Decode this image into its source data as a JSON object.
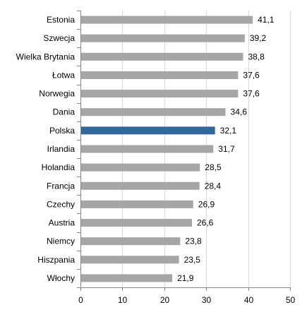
{
  "chart_data": {
    "type": "bar",
    "orientation": "horizontal",
    "title": "",
    "xlabel": "",
    "ylabel": "",
    "categories": [
      "Estonia",
      "Szwecja",
      "Wielka Brytania",
      "Łotwa",
      "Norwegia",
      "Dania",
      "Polska",
      "Irlandia",
      "Holandia",
      "Francja",
      "Czechy",
      "Austria",
      "Niemcy",
      "Hiszpania",
      "Włochy"
    ],
    "values": [
      41.1,
      39.2,
      38.8,
      37.6,
      37.6,
      34.6,
      32.1,
      31.7,
      28.5,
      28.4,
      26.9,
      26.6,
      23.8,
      23.5,
      21.9
    ],
    "value_labels": [
      "41,1",
      "39,2",
      "38,8",
      "37,6",
      "37,6",
      "34,6",
      "32,1",
      "31,7",
      "28,5",
      "28,4",
      "26,9",
      "26,6",
      "23,8",
      "23,5",
      "21,9"
    ],
    "xlim": [
      0,
      50
    ],
    "xticks": [
      "0",
      "10",
      "20",
      "30",
      "40",
      "50"
    ],
    "grid": true,
    "colors": {
      "bar": "#a6a6a6",
      "highlight": "#336699",
      "grid": "#d9d9d9",
      "axis": "#868686"
    },
    "highlight_category": "Polska"
  }
}
